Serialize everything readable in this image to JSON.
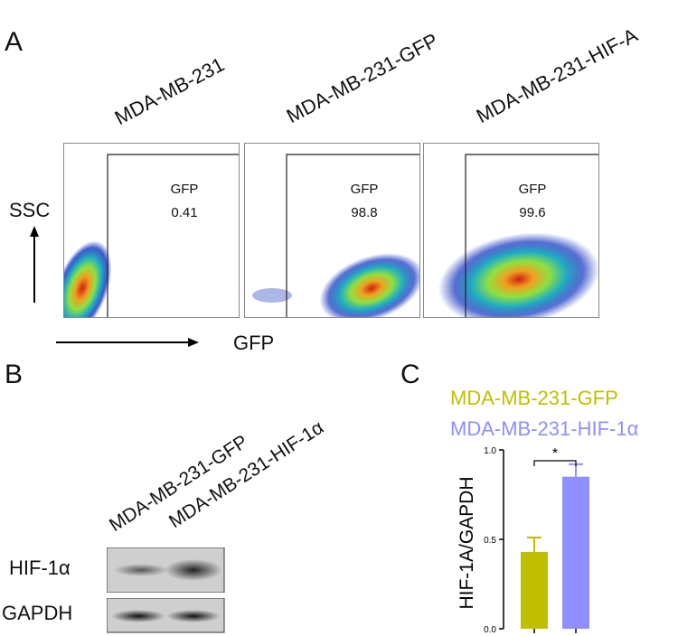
{
  "panelA": {
    "label": "A",
    "samples": [
      {
        "name": "MDA-MB-231",
        "gate_label": "GFP",
        "gate_value": "0.41"
      },
      {
        "name": "MDA-MB-231-GFP",
        "gate_label": "GFP",
        "gate_value": "98.8"
      },
      {
        "name": "MDA-MB-231-HIF-A",
        "gate_label": "GFP",
        "gate_value": "99.6"
      }
    ],
    "y_axis_label": "SSC",
    "x_axis_label": "GFP"
  },
  "panelB": {
    "label": "B",
    "lanes": [
      "MDA-MB-231-GFP",
      "MDA-MB-231-HIF-1α"
    ],
    "bands": [
      "HIF-1α",
      "GAPDH"
    ]
  },
  "panelC": {
    "label": "C",
    "significance": "*"
  },
  "chart_data": {
    "type": "bar",
    "categories": [
      "MDA-MB-231-GFP",
      "MDA-MB-231-HIF-1α"
    ],
    "values": [
      0.43,
      0.85
    ],
    "errors": [
      0.08,
      0.07
    ],
    "colors": [
      "#bfbf00",
      "#8f8fff"
    ],
    "ylabel": "HIF-1A/GAPDH",
    "ylim": [
      0,
      1.0
    ],
    "yticks": [
      "0.0",
      "0.5",
      "1.0"
    ],
    "legend": [
      "MDA-MB-231-GFP",
      "MDA-MB-231-HIF-1α"
    ]
  }
}
